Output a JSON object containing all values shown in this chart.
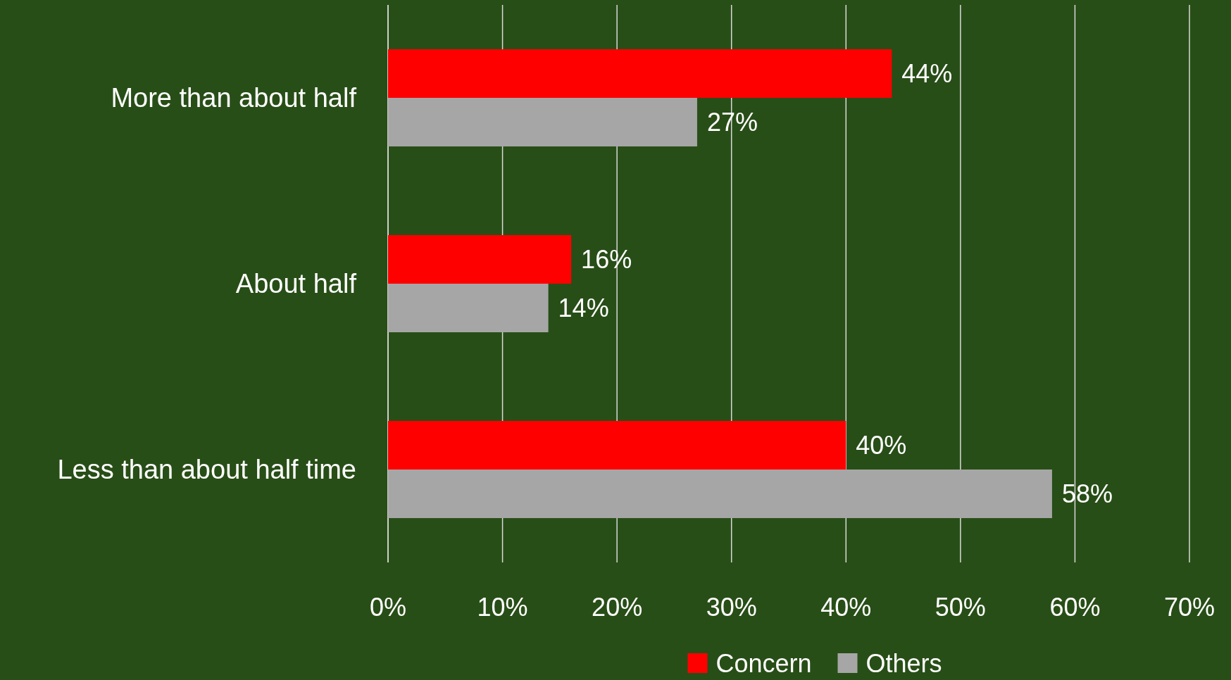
{
  "chart_data": {
    "type": "bar",
    "orientation": "horizontal",
    "categories": [
      "More than about half",
      "About half",
      "Less than about half time"
    ],
    "series": [
      {
        "name": "Concern",
        "color": "#ff0000",
        "values": [
          44,
          16,
          40
        ],
        "value_labels": [
          "44%",
          "16%",
          "40%"
        ]
      },
      {
        "name": "Others",
        "color": "#a6a6a6",
        "values": [
          27,
          14,
          58
        ],
        "value_labels": [
          "27%",
          "14%",
          "58%"
        ]
      }
    ],
    "xlim": [
      0,
      70
    ],
    "xticks": [
      {
        "value": 0,
        "label": "0%"
      },
      {
        "value": 10,
        "label": "10%"
      },
      {
        "value": 20,
        "label": "20%"
      },
      {
        "value": 30,
        "label": "30%"
      },
      {
        "value": 40,
        "label": "40%"
      },
      {
        "value": 50,
        "label": "50%"
      },
      {
        "value": 60,
        "label": "60%"
      },
      {
        "value": 70,
        "label": "70%"
      }
    ],
    "grid": "x",
    "legend": "bottom"
  }
}
